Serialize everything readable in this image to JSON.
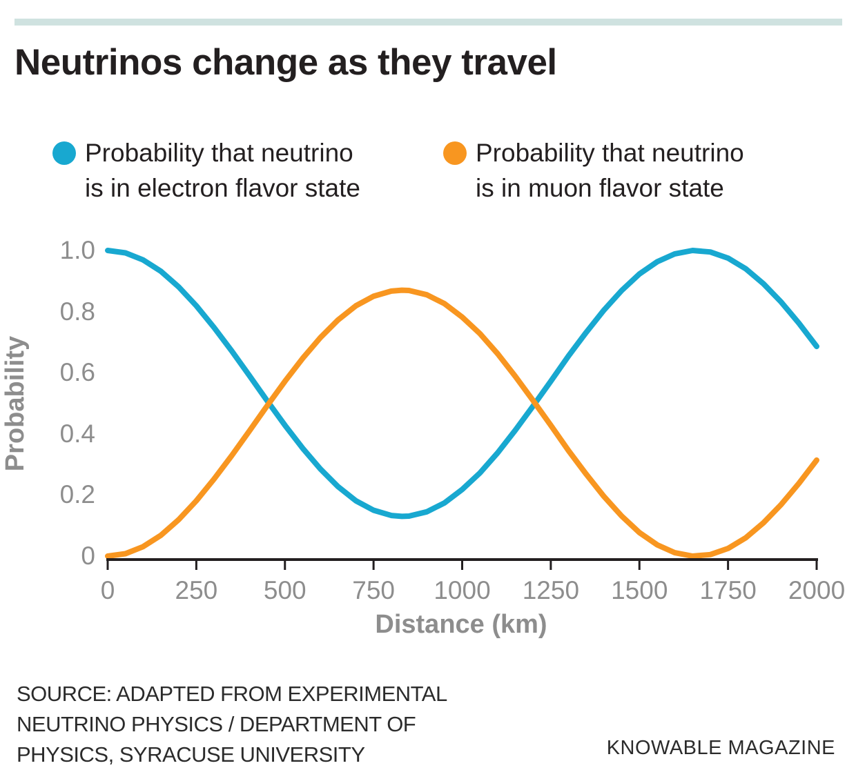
{
  "page": {
    "title": "Neutrinos change as they travel",
    "accent_bar_color": "#cfe2e0"
  },
  "colors": {
    "electron_blue": "#18a8d0",
    "muon_orange": "#f89620",
    "axis_dark": "#231f20",
    "axis_text_gray": "#8d8d8d"
  },
  "legend": {
    "items": [
      {
        "color": "#18a8d0",
        "line1": "Probability that neutrino",
        "line2": "is in electron flavor state"
      },
      {
        "color": "#f89620",
        "line1": "Probability that neutrino",
        "line2": "is in muon flavor state"
      }
    ]
  },
  "chart_data": {
    "type": "line",
    "title": "Neutrinos change as they travel",
    "xlabel": "Distance (km)",
    "ylabel": "Probability",
    "xlim": [
      0,
      2000
    ],
    "ylim": [
      0,
      1.0
    ],
    "grid": false,
    "legend_position": "top",
    "x_ticks": [
      0,
      250,
      500,
      750,
      1000,
      1250,
      1500,
      1750,
      2000
    ],
    "x_tick_labels": [
      "0",
      "250",
      "500",
      "750",
      "1000",
      "1250",
      "1500",
      "1750",
      "2000"
    ],
    "y_ticks": [
      0,
      0.2,
      0.4,
      0.6,
      0.8,
      1.0
    ],
    "y_tick_labels": [
      "0",
      "0.2",
      "0.4",
      "0.6",
      "0.8",
      "1.0"
    ],
    "x": [
      0,
      50,
      100,
      150,
      200,
      250,
      300,
      350,
      400,
      450,
      500,
      550,
      600,
      650,
      700,
      750,
      800,
      830,
      850,
      900,
      950,
      1000,
      1050,
      1100,
      1150,
      1200,
      1250,
      1300,
      1350,
      1400,
      1450,
      1500,
      1550,
      1600,
      1650,
      1700,
      1750,
      1800,
      1850,
      1900,
      1950,
      2000
    ],
    "series": [
      {
        "name": "Probability that neutrino is in electron flavor state",
        "color": "#18a8d0",
        "values": [
          1.0,
          0.992,
          0.969,
          0.932,
          0.881,
          0.819,
          0.748,
          0.671,
          0.59,
          0.508,
          0.428,
          0.353,
          0.285,
          0.227,
          0.181,
          0.15,
          0.133,
          0.13,
          0.131,
          0.145,
          0.174,
          0.218,
          0.272,
          0.338,
          0.412,
          0.491,
          0.572,
          0.655,
          0.732,
          0.805,
          0.869,
          0.923,
          0.963,
          0.989,
          1.0,
          0.995,
          0.975,
          0.94,
          0.891,
          0.831,
          0.762,
          0.686
        ]
      },
      {
        "name": "Probability that neutrino is in muon flavor state",
        "color": "#f89620",
        "values": [
          0.0,
          0.008,
          0.031,
          0.068,
          0.119,
          0.181,
          0.252,
          0.329,
          0.41,
          0.492,
          0.572,
          0.647,
          0.715,
          0.773,
          0.819,
          0.85,
          0.867,
          0.87,
          0.869,
          0.855,
          0.826,
          0.782,
          0.728,
          0.662,
          0.588,
          0.509,
          0.428,
          0.345,
          0.268,
          0.195,
          0.131,
          0.077,
          0.037,
          0.011,
          0.0,
          0.005,
          0.025,
          0.06,
          0.109,
          0.169,
          0.238,
          0.314
        ]
      }
    ]
  },
  "footer": {
    "source_lines": [
      "SOURCE: ADAPTED FROM EXPERIMENTAL",
      "NEUTRINO PHYSICS / DEPARTMENT OF",
      "PHYSICS, SYRACUSE UNIVERSITY"
    ],
    "credit": "KNOWABLE MAGAZINE"
  }
}
